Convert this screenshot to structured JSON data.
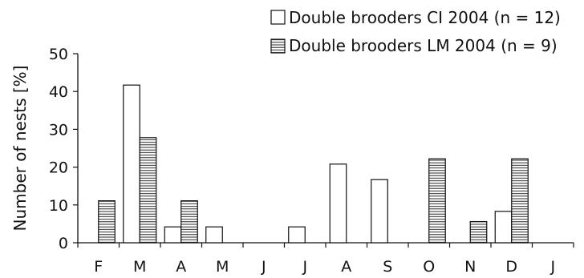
{
  "chart_data": {
    "type": "bar",
    "title": "",
    "xlabel": "",
    "ylabel": "Number of nests [%]",
    "ylim": [
      0,
      50
    ],
    "yticks": [
      0,
      10,
      20,
      30,
      40,
      50
    ],
    "grid": false,
    "legend_position": "top-right",
    "categories": [
      "F",
      "M",
      "A",
      "M",
      "J",
      "J",
      "A",
      "S",
      "O",
      "N",
      "D",
      "J"
    ],
    "series": [
      {
        "name": "Double brooders CI 2004 (n = 12)",
        "pattern": "open",
        "color": "#ffffff",
        "values": [
          0,
          41.7,
          4.2,
          4.2,
          0,
          4.2,
          20.8,
          16.7,
          0,
          0,
          8.3,
          0
        ]
      },
      {
        "name": "Double brooders LM 2004 (n = 9)",
        "pattern": "horizontal-stripes",
        "color": "#111111",
        "values": [
          11.1,
          27.8,
          11.1,
          0,
          0,
          0,
          0,
          0,
          22.2,
          5.6,
          22.2,
          0
        ]
      }
    ]
  }
}
